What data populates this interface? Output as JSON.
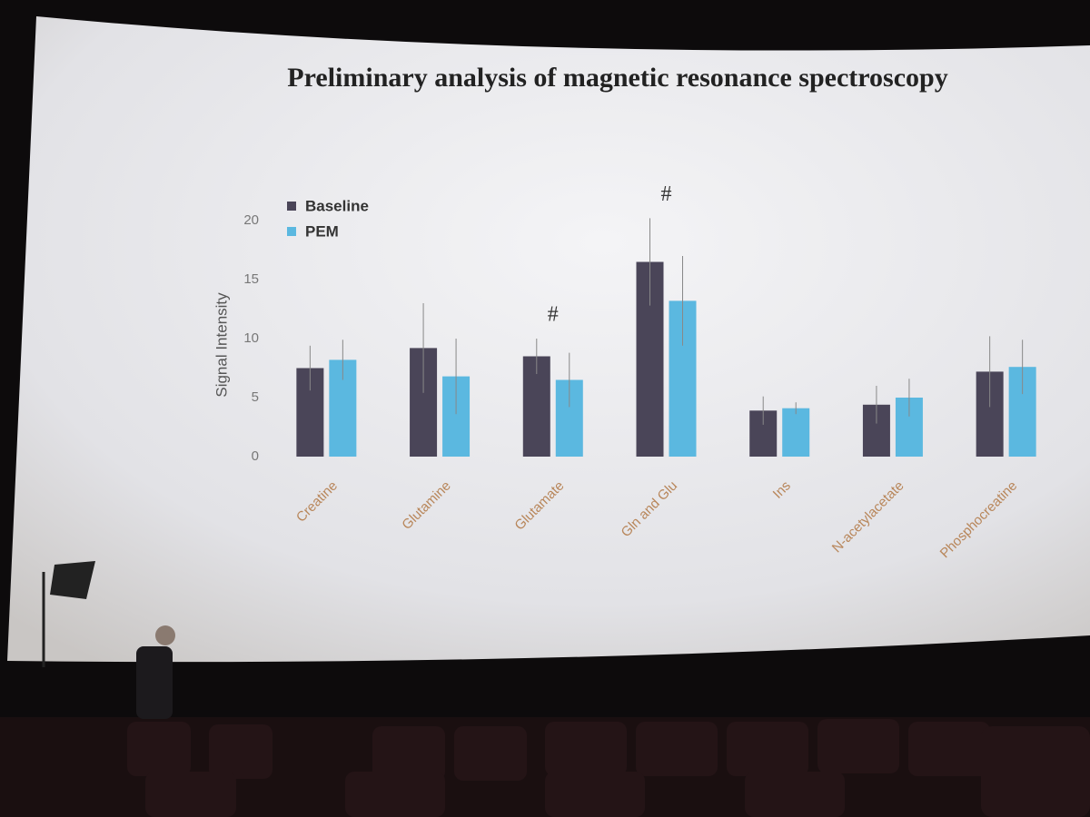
{
  "chart_data": {
    "type": "bar",
    "title": "Preliminary analysis of magnetic resonance spectroscopy",
    "y_label": "Signal Intensity",
    "categories": [
      "Creatine",
      "Glutamine",
      "Glutamate",
      "Gln and Glu",
      "Ins",
      "N-acetylacetate",
      "Phosphocreatine"
    ],
    "series": [
      {
        "name": "Baseline",
        "color": "#4a4558",
        "values": [
          7.5,
          9.2,
          8.5,
          16.5,
          3.9,
          4.4,
          7.2
        ],
        "errors": [
          1.9,
          3.8,
          1.5,
          3.7,
          1.2,
          1.6,
          3.0
        ]
      },
      {
        "name": "PEM",
        "color": "#5bb8e0",
        "values": [
          8.2,
          6.8,
          6.5,
          13.2,
          4.1,
          5.0,
          7.6
        ],
        "errors": [
          1.7,
          3.2,
          2.3,
          3.8,
          0.5,
          1.6,
          2.3
        ]
      }
    ],
    "annotations": [
      {
        "text": "#",
        "category": "Glutamate"
      },
      {
        "text": "#",
        "category": "Gln and Glu"
      }
    ],
    "ylim": [
      0,
      20
    ],
    "yticks": [
      0,
      5,
      10,
      15,
      20
    ],
    "grid": false
  }
}
